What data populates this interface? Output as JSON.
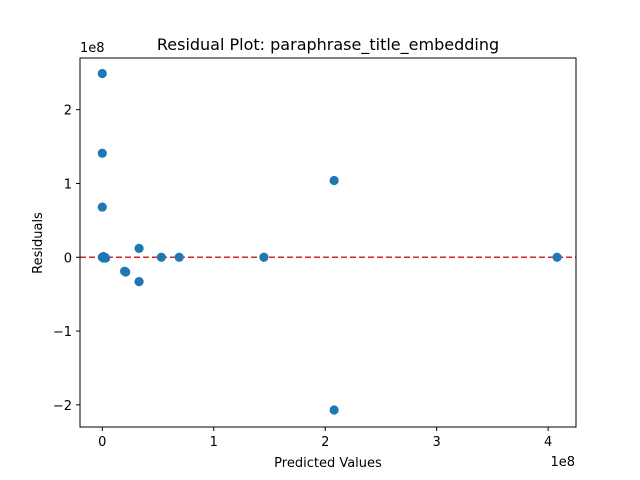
{
  "chart_data": {
    "type": "scatter",
    "title": "Residual Plot: paraphrase_title_embedding",
    "xlabel": "Predicted Values",
    "ylabel": "Residuals",
    "x_offset_text": "1e8",
    "y_offset_text": "1e8",
    "x_unit": 100000000,
    "y_unit": 100000000,
    "xlim": [
      -0.2,
      4.25
    ],
    "ylim": [
      -2.3,
      2.7
    ],
    "x_ticks": [
      0,
      1,
      2,
      3,
      4
    ],
    "y_ticks": [
      -2,
      -1,
      0,
      1,
      2
    ],
    "reference_line": {
      "y": 0,
      "color": "#d62728",
      "style": "dashed"
    },
    "marker_color": "#1f77b4",
    "grid": false,
    "points": [
      {
        "x": 0.0,
        "y": 2.49
      },
      {
        "x": 0.0,
        "y": 1.41
      },
      {
        "x": 0.0,
        "y": 0.68
      },
      {
        "x": 0.0,
        "y": 0.0
      },
      {
        "x": 0.01,
        "y": 0.01
      },
      {
        "x": 0.02,
        "y": 0.0
      },
      {
        "x": 0.03,
        "y": -0.01
      },
      {
        "x": 0.01,
        "y": -0.01
      },
      {
        "x": 0.2,
        "y": -0.19
      },
      {
        "x": 0.21,
        "y": -0.2
      },
      {
        "x": 0.33,
        "y": 0.12
      },
      {
        "x": 0.33,
        "y": -0.33
      },
      {
        "x": 0.53,
        "y": 0.0
      },
      {
        "x": 0.69,
        "y": 0.0
      },
      {
        "x": 1.45,
        "y": 0.0
      },
      {
        "x": 2.08,
        "y": 1.04
      },
      {
        "x": 2.08,
        "y": -2.07
      },
      {
        "x": 4.08,
        "y": 0.0
      }
    ]
  }
}
